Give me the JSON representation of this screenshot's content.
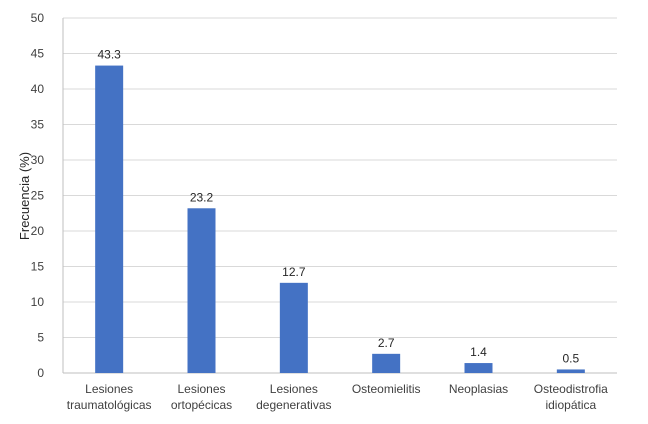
{
  "chart_data": {
    "type": "bar",
    "title": "",
    "xlabel": "",
    "ylabel": "Frecuencia (%)",
    "ylim": [
      0,
      50
    ],
    "yticks": [
      0,
      5,
      10,
      15,
      20,
      25,
      30,
      35,
      40,
      45,
      50
    ],
    "grid": true,
    "legend": "none",
    "bar_color": "#4472c4",
    "categories": [
      [
        "Lesiones",
        "traumatológicas"
      ],
      [
        "Lesiones",
        "ortopécicas"
      ],
      [
        "Lesiones",
        "degenerativas"
      ],
      [
        "Osteomielitis"
      ],
      [
        "Neoplasias"
      ],
      [
        "Osteodistrofia",
        "idiopática"
      ]
    ],
    "values": [
      43.3,
      23.2,
      12.7,
      2.7,
      1.4,
      0.5
    ],
    "data_labels": [
      "43.3",
      "23.2",
      "12.7",
      "2.7",
      "1.4",
      "0.5"
    ]
  }
}
